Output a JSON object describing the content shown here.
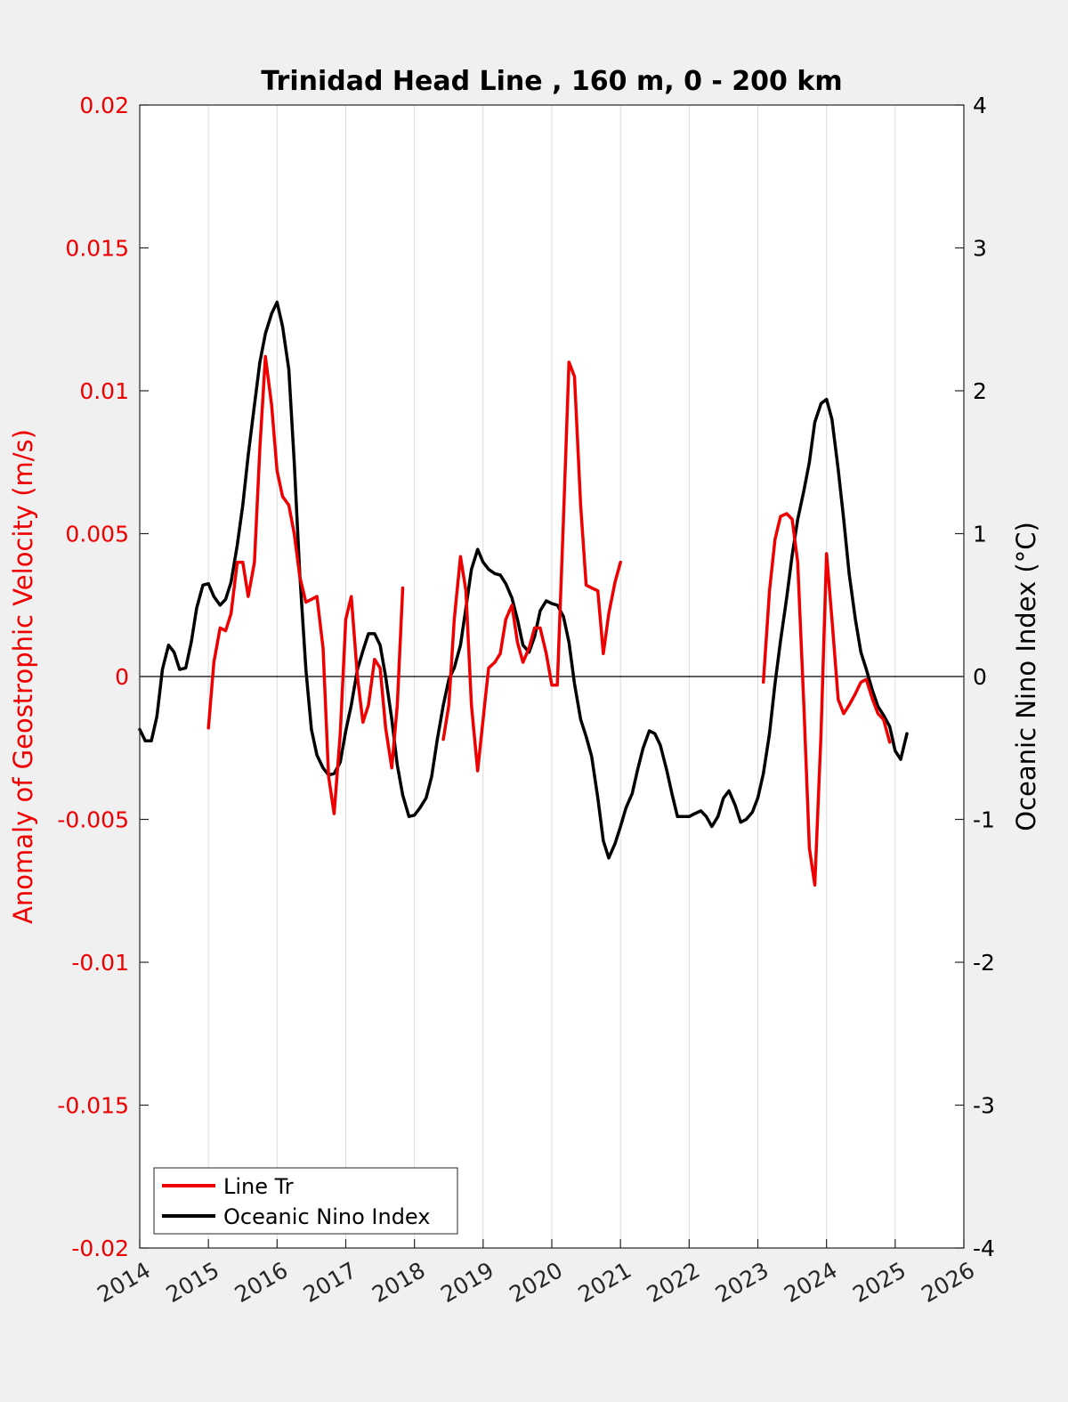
{
  "chart_data": {
    "type": "line",
    "title": "Trinidad Head Line , 160 m, 0 - 200 km",
    "xlabel": "",
    "ylabel_left": "Anomaly of Geostrophic Velocity (m/s)",
    "ylabel_right": "Oceanic Nino Index (°C)",
    "xlim": [
      2014,
      2026
    ],
    "ylim_left": [
      -0.02,
      0.02
    ],
    "ylim_right": [
      -4,
      4
    ],
    "x_ticks": [
      "2014",
      "2015",
      "2016",
      "2017",
      "2018",
      "2019",
      "2020",
      "2021",
      "2022",
      "2023",
      "2024",
      "2025",
      "2026"
    ],
    "y_ticks_left": [
      "-0.02",
      "-0.015",
      "-0.01",
      "-0.005",
      "0",
      "0.005",
      "0.01",
      "0.015",
      "0.02"
    ],
    "y_ticks_right": [
      "-4",
      "-3",
      "-2",
      "-1",
      "0",
      "1",
      "2",
      "3",
      "4"
    ],
    "grid": "vertical",
    "legend_position": "bottom-left",
    "colors": {
      "line_tr": "#ee0000",
      "oni": "#000000",
      "left_axis": "#ee0000",
      "right_axis": "#000000"
    },
    "series": [
      {
        "name": "Line Tr",
        "axis": "left",
        "segments": [
          [
            [
              2015.0,
              -0.0018
            ],
            [
              2015.08,
              0.0005
            ],
            [
              2015.17,
              0.0017
            ],
            [
              2015.25,
              0.0016
            ],
            [
              2015.33,
              0.0022
            ],
            [
              2015.42,
              0.004
            ],
            [
              2015.5,
              0.004
            ],
            [
              2015.58,
              0.0028
            ],
            [
              2015.67,
              0.004
            ],
            [
              2015.75,
              0.008
            ],
            [
              2015.83,
              0.0112
            ],
            [
              2015.92,
              0.0095
            ],
            [
              2016.0,
              0.0072
            ],
            [
              2016.08,
              0.0063
            ],
            [
              2016.17,
              0.006
            ],
            [
              2016.25,
              0.005
            ],
            [
              2016.33,
              0.0035
            ],
            [
              2016.42,
              0.0026
            ],
            [
              2016.5,
              0.0027
            ],
            [
              2016.58,
              0.0028
            ],
            [
              2016.67,
              0.001
            ],
            [
              2016.75,
              -0.0035
            ],
            [
              2016.83,
              -0.0048
            ],
            [
              2016.92,
              -0.002
            ],
            [
              2017.0,
              0.002
            ],
            [
              2017.08,
              0.0028
            ],
            [
              2017.17,
              0.0
            ],
            [
              2017.25,
              -0.0016
            ],
            [
              2017.33,
              -0.001
            ],
            [
              2017.42,
              0.0006
            ],
            [
              2017.5,
              0.0003
            ],
            [
              2017.58,
              -0.0018
            ],
            [
              2017.67,
              -0.0032
            ],
            [
              2017.75,
              -0.001
            ],
            [
              2017.83,
              0.0031
            ]
          ],
          [
            [
              2018.42,
              -0.0022
            ],
            [
              2018.5,
              -0.001
            ],
            [
              2018.58,
              0.002
            ],
            [
              2018.67,
              0.0042
            ],
            [
              2018.75,
              0.003
            ],
            [
              2018.83,
              -0.001
            ],
            [
              2018.92,
              -0.0033
            ],
            [
              2019.0,
              -0.0015
            ],
            [
              2019.08,
              0.0003
            ],
            [
              2019.17,
              0.0005
            ],
            [
              2019.25,
              0.0008
            ],
            [
              2019.33,
              0.002
            ],
            [
              2019.42,
              0.0025
            ],
            [
              2019.5,
              0.0012
            ],
            [
              2019.58,
              0.0005
            ],
            [
              2019.67,
              0.001
            ],
            [
              2019.75,
              0.0017
            ],
            [
              2019.83,
              0.0017
            ],
            [
              2019.92,
              0.0008
            ],
            [
              2020.0,
              -0.0003
            ],
            [
              2020.08,
              -0.0003
            ],
            [
              2020.17,
              0.0055
            ],
            [
              2020.25,
              0.011
            ],
            [
              2020.33,
              0.0105
            ],
            [
              2020.42,
              0.006
            ],
            [
              2020.5,
              0.0032
            ],
            [
              2020.58,
              0.0031
            ],
            [
              2020.67,
              0.003
            ],
            [
              2020.75,
              0.0008
            ],
            [
              2020.83,
              0.0022
            ],
            [
              2020.92,
              0.0033
            ],
            [
              2021.0,
              0.004
            ]
          ],
          [
            [
              2023.08,
              -0.0002
            ],
            [
              2023.17,
              0.003
            ],
            [
              2023.25,
              0.0048
            ],
            [
              2023.33,
              0.0056
            ],
            [
              2023.42,
              0.0057
            ],
            [
              2023.5,
              0.0055
            ],
            [
              2023.58,
              0.004
            ],
            [
              2023.67,
              -0.001
            ],
            [
              2023.75,
              -0.006
            ],
            [
              2023.83,
              -0.0073
            ],
            [
              2023.92,
              -0.002
            ],
            [
              2024.0,
              0.0043
            ],
            [
              2024.08,
              0.002
            ],
            [
              2024.17,
              -0.0008
            ],
            [
              2024.25,
              -0.0013
            ],
            [
              2024.33,
              -0.001
            ],
            [
              2024.42,
              -0.0006
            ],
            [
              2024.5,
              -0.0002
            ],
            [
              2024.58,
              -0.0001
            ],
            [
              2024.67,
              -0.0008
            ],
            [
              2024.75,
              -0.0013
            ],
            [
              2024.83,
              -0.0015
            ],
            [
              2024.92,
              -0.0023
            ]
          ]
        ]
      },
      {
        "name": "Oceanic Nino Index",
        "axis": "right",
        "segments": [
          [
            [
              2014.0,
              -0.37
            ],
            [
              2014.08,
              -0.45
            ],
            [
              2014.17,
              -0.45
            ],
            [
              2014.25,
              -0.28
            ],
            [
              2014.33,
              0.05
            ],
            [
              2014.42,
              0.22
            ],
            [
              2014.5,
              0.17
            ],
            [
              2014.58,
              0.05
            ],
            [
              2014.67,
              0.06
            ],
            [
              2014.75,
              0.24
            ],
            [
              2014.83,
              0.48
            ],
            [
              2014.92,
              0.64
            ],
            [
              2015.0,
              0.65
            ],
            [
              2015.08,
              0.56
            ],
            [
              2015.17,
              0.5
            ],
            [
              2015.25,
              0.54
            ],
            [
              2015.33,
              0.66
            ],
            [
              2015.42,
              0.92
            ],
            [
              2015.5,
              1.2
            ],
            [
              2015.58,
              1.55
            ],
            [
              2015.67,
              1.9
            ],
            [
              2015.75,
              2.2
            ],
            [
              2015.83,
              2.4
            ],
            [
              2015.92,
              2.54
            ],
            [
              2016.0,
              2.62
            ],
            [
              2016.08,
              2.45
            ],
            [
              2016.17,
              2.15
            ],
            [
              2016.25,
              1.5
            ],
            [
              2016.33,
              0.72
            ],
            [
              2016.42,
              0.05
            ],
            [
              2016.5,
              -0.37
            ],
            [
              2016.58,
              -0.55
            ],
            [
              2016.67,
              -0.64
            ],
            [
              2016.75,
              -0.69
            ],
            [
              2016.83,
              -0.68
            ],
            [
              2016.92,
              -0.6
            ],
            [
              2017.0,
              -0.38
            ],
            [
              2017.08,
              -0.2
            ],
            [
              2017.17,
              0.05
            ],
            [
              2017.25,
              0.18
            ],
            [
              2017.33,
              0.3
            ],
            [
              2017.42,
              0.3
            ],
            [
              2017.5,
              0.22
            ],
            [
              2017.58,
              0.0
            ],
            [
              2017.67,
              -0.3
            ],
            [
              2017.75,
              -0.62
            ],
            [
              2017.83,
              -0.83
            ],
            [
              2017.92,
              -0.98
            ],
            [
              2018.0,
              -0.97
            ],
            [
              2018.08,
              -0.92
            ],
            [
              2018.17,
              -0.85
            ],
            [
              2018.25,
              -0.7
            ],
            [
              2018.33,
              -0.45
            ],
            [
              2018.42,
              -0.2
            ],
            [
              2018.5,
              -0.02
            ],
            [
              2018.58,
              0.06
            ],
            [
              2018.67,
              0.22
            ],
            [
              2018.75,
              0.48
            ],
            [
              2018.83,
              0.75
            ],
            [
              2018.92,
              0.89
            ],
            [
              2019.0,
              0.8
            ],
            [
              2019.08,
              0.75
            ],
            [
              2019.17,
              0.72
            ],
            [
              2019.25,
              0.71
            ],
            [
              2019.33,
              0.65
            ],
            [
              2019.42,
              0.55
            ],
            [
              2019.5,
              0.4
            ],
            [
              2019.58,
              0.22
            ],
            [
              2019.67,
              0.17
            ],
            [
              2019.75,
              0.28
            ],
            [
              2019.83,
              0.46
            ],
            [
              2019.92,
              0.53
            ],
            [
              2020.0,
              0.51
            ],
            [
              2020.08,
              0.5
            ],
            [
              2020.17,
              0.42
            ],
            [
              2020.25,
              0.24
            ],
            [
              2020.33,
              -0.05
            ],
            [
              2020.42,
              -0.3
            ],
            [
              2020.5,
              -0.42
            ],
            [
              2020.58,
              -0.56
            ],
            [
              2020.67,
              -0.85
            ],
            [
              2020.75,
              -1.15
            ],
            [
              2020.83,
              -1.27
            ],
            [
              2020.92,
              -1.17
            ],
            [
              2021.0,
              -1.05
            ],
            [
              2021.08,
              -0.92
            ],
            [
              2021.17,
              -0.82
            ],
            [
              2021.25,
              -0.65
            ],
            [
              2021.33,
              -0.5
            ],
            [
              2021.42,
              -0.38
            ],
            [
              2021.5,
              -0.4
            ],
            [
              2021.58,
              -0.48
            ],
            [
              2021.67,
              -0.65
            ],
            [
              2021.75,
              -0.82
            ],
            [
              2021.83,
              -0.98
            ],
            [
              2021.92,
              -0.98
            ],
            [
              2022.0,
              -0.98
            ],
            [
              2022.08,
              -0.96
            ],
            [
              2022.17,
              -0.94
            ],
            [
              2022.25,
              -0.98
            ],
            [
              2022.33,
              -1.05
            ],
            [
              2022.42,
              -0.98
            ],
            [
              2022.5,
              -0.85
            ],
            [
              2022.58,
              -0.8
            ],
            [
              2022.67,
              -0.9
            ],
            [
              2022.75,
              -1.02
            ],
            [
              2022.83,
              -1.0
            ],
            [
              2022.92,
              -0.95
            ],
            [
              2023.0,
              -0.85
            ],
            [
              2023.08,
              -0.68
            ],
            [
              2023.17,
              -0.4
            ],
            [
              2023.25,
              -0.05
            ],
            [
              2023.33,
              0.25
            ],
            [
              2023.42,
              0.55
            ],
            [
              2023.5,
              0.85
            ],
            [
              2023.58,
              1.1
            ],
            [
              2023.67,
              1.3
            ],
            [
              2023.75,
              1.5
            ],
            [
              2023.83,
              1.78
            ],
            [
              2023.92,
              1.91
            ],
            [
              2024.0,
              1.94
            ],
            [
              2024.08,
              1.8
            ],
            [
              2024.17,
              1.45
            ],
            [
              2024.25,
              1.1
            ],
            [
              2024.33,
              0.72
            ],
            [
              2024.42,
              0.4
            ],
            [
              2024.5,
              0.17
            ],
            [
              2024.58,
              0.05
            ],
            [
              2024.67,
              -0.1
            ],
            [
              2024.75,
              -0.21
            ],
            [
              2024.83,
              -0.27
            ],
            [
              2024.92,
              -0.35
            ],
            [
              2025.0,
              -0.52
            ],
            [
              2025.08,
              -0.58
            ],
            [
              2025.17,
              -0.4
            ]
          ]
        ]
      }
    ]
  }
}
